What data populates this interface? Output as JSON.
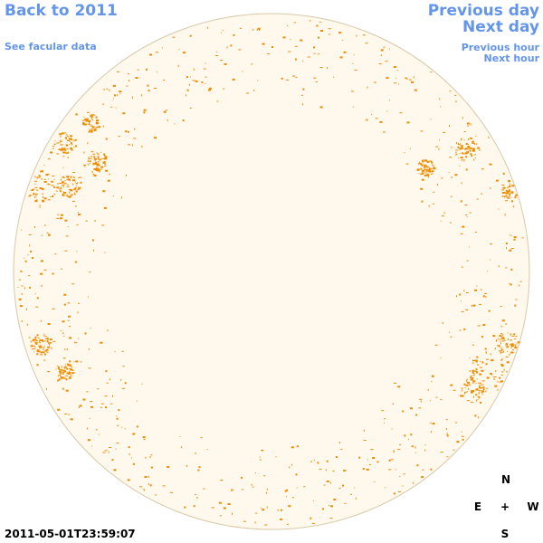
{
  "navigation": {
    "back_label": "Back to 2011",
    "facular_label": "See facular data",
    "prev_day_label": "Previous day",
    "next_day_label": "Next day",
    "prev_hour_label": "Previous hour",
    "next_hour_label": "Next hour"
  },
  "compass": {
    "north": "N",
    "east": "E",
    "center": "+",
    "west": "W",
    "south": "S"
  },
  "timestamp": "2011-05-01T23:59:07",
  "colors": {
    "link": "#6495ed",
    "disk_fill": "#fff8ec",
    "disk_edge": "#d8c8a8",
    "facula": "#f08c00"
  }
}
